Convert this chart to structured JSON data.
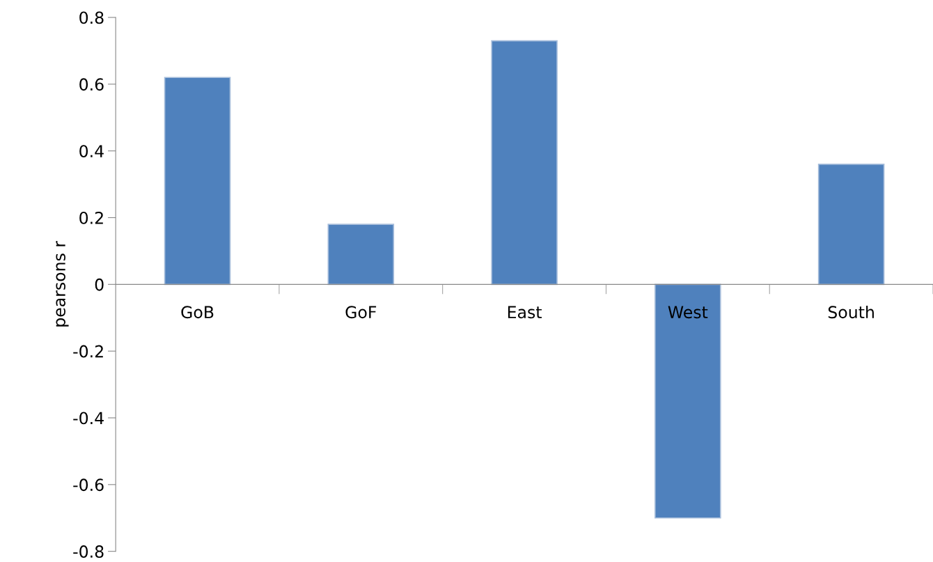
{
  "chart_data": {
    "type": "bar",
    "ylabel": "pearsons r",
    "categories": [
      "GoB",
      "GoF",
      "East",
      "West",
      "South"
    ],
    "values": [
      0.62,
      0.18,
      0.73,
      -0.7,
      0.36
    ],
    "color": "#4f81bd",
    "ylim": [
      -0.8,
      0.8
    ],
    "yticks": [
      -0.8,
      -0.6,
      -0.4,
      -0.2,
      0,
      0.2,
      0.4,
      0.6,
      0.8
    ],
    "grid": false,
    "legend": false
  }
}
